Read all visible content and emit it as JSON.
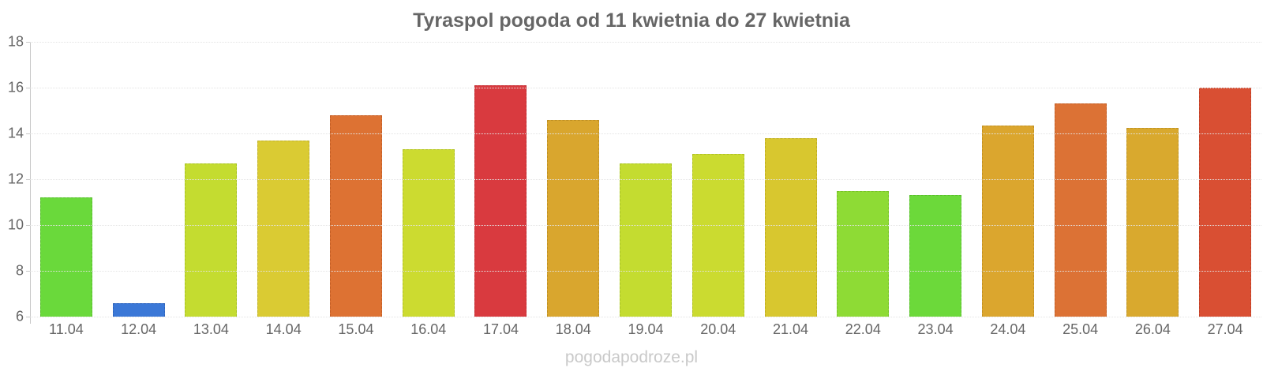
{
  "title": "Tyraspol pogoda od 11 kwietnia do 27 kwietnia",
  "watermark": "pogodapodroze.pl",
  "colors": {
    "background": "#ffffff",
    "title_text": "#666666",
    "axis_label": "#666666",
    "axis_line": "#c9c9c9",
    "gridline": "#e4e4e4",
    "watermark_text": "#c9c9c9"
  },
  "chart_data": {
    "type": "bar",
    "title": "Tyraspol pogoda od 11 kwietnia do 27 kwietnia",
    "xlabel": "",
    "ylabel": "",
    "ylim": [
      6,
      18
    ],
    "yticks": [
      18,
      16,
      14,
      12,
      10,
      8,
      6
    ],
    "grid": "horizontal-dotted",
    "legend": "none",
    "categories": [
      "11.04",
      "12.04",
      "13.04",
      "14.04",
      "15.04",
      "16.04",
      "17.04",
      "18.04",
      "19.04",
      "20.04",
      "21.04",
      "22.04",
      "23.04",
      "24.04",
      "25.04",
      "26.04",
      "27.04"
    ],
    "values": [
      11.2,
      6.6,
      12.7,
      13.7,
      14.8,
      13.3,
      16.1,
      14.6,
      12.7,
      13.1,
      13.8,
      11.5,
      11.3,
      14.35,
      15.3,
      14.25,
      16.0
    ],
    "bar_colors": [
      "#6ad93b",
      "#3b78d7",
      "#c4dc30",
      "#dacb33",
      "#dd7233",
      "#ccdb30",
      "#d93a3f",
      "#d9a62e",
      "#c4dc30",
      "#cbdb30",
      "#d8c72f",
      "#8edb35",
      "#6cd93a",
      "#dba62e",
      "#dc7235",
      "#d9a92e",
      "#d94f33"
    ],
    "bar_border_colors": [
      "#58bd2e",
      "#2f64bb",
      "#a8c226",
      "#c0b128",
      "#c35e26",
      "#b1c126",
      "#bf2c31",
      "#bf9024",
      "#a8c226",
      "#b0c126",
      "#beae25",
      "#77c129",
      "#59bd2d",
      "#c19024",
      "#c25f27",
      "#bf9324",
      "#bf3f26"
    ]
  }
}
